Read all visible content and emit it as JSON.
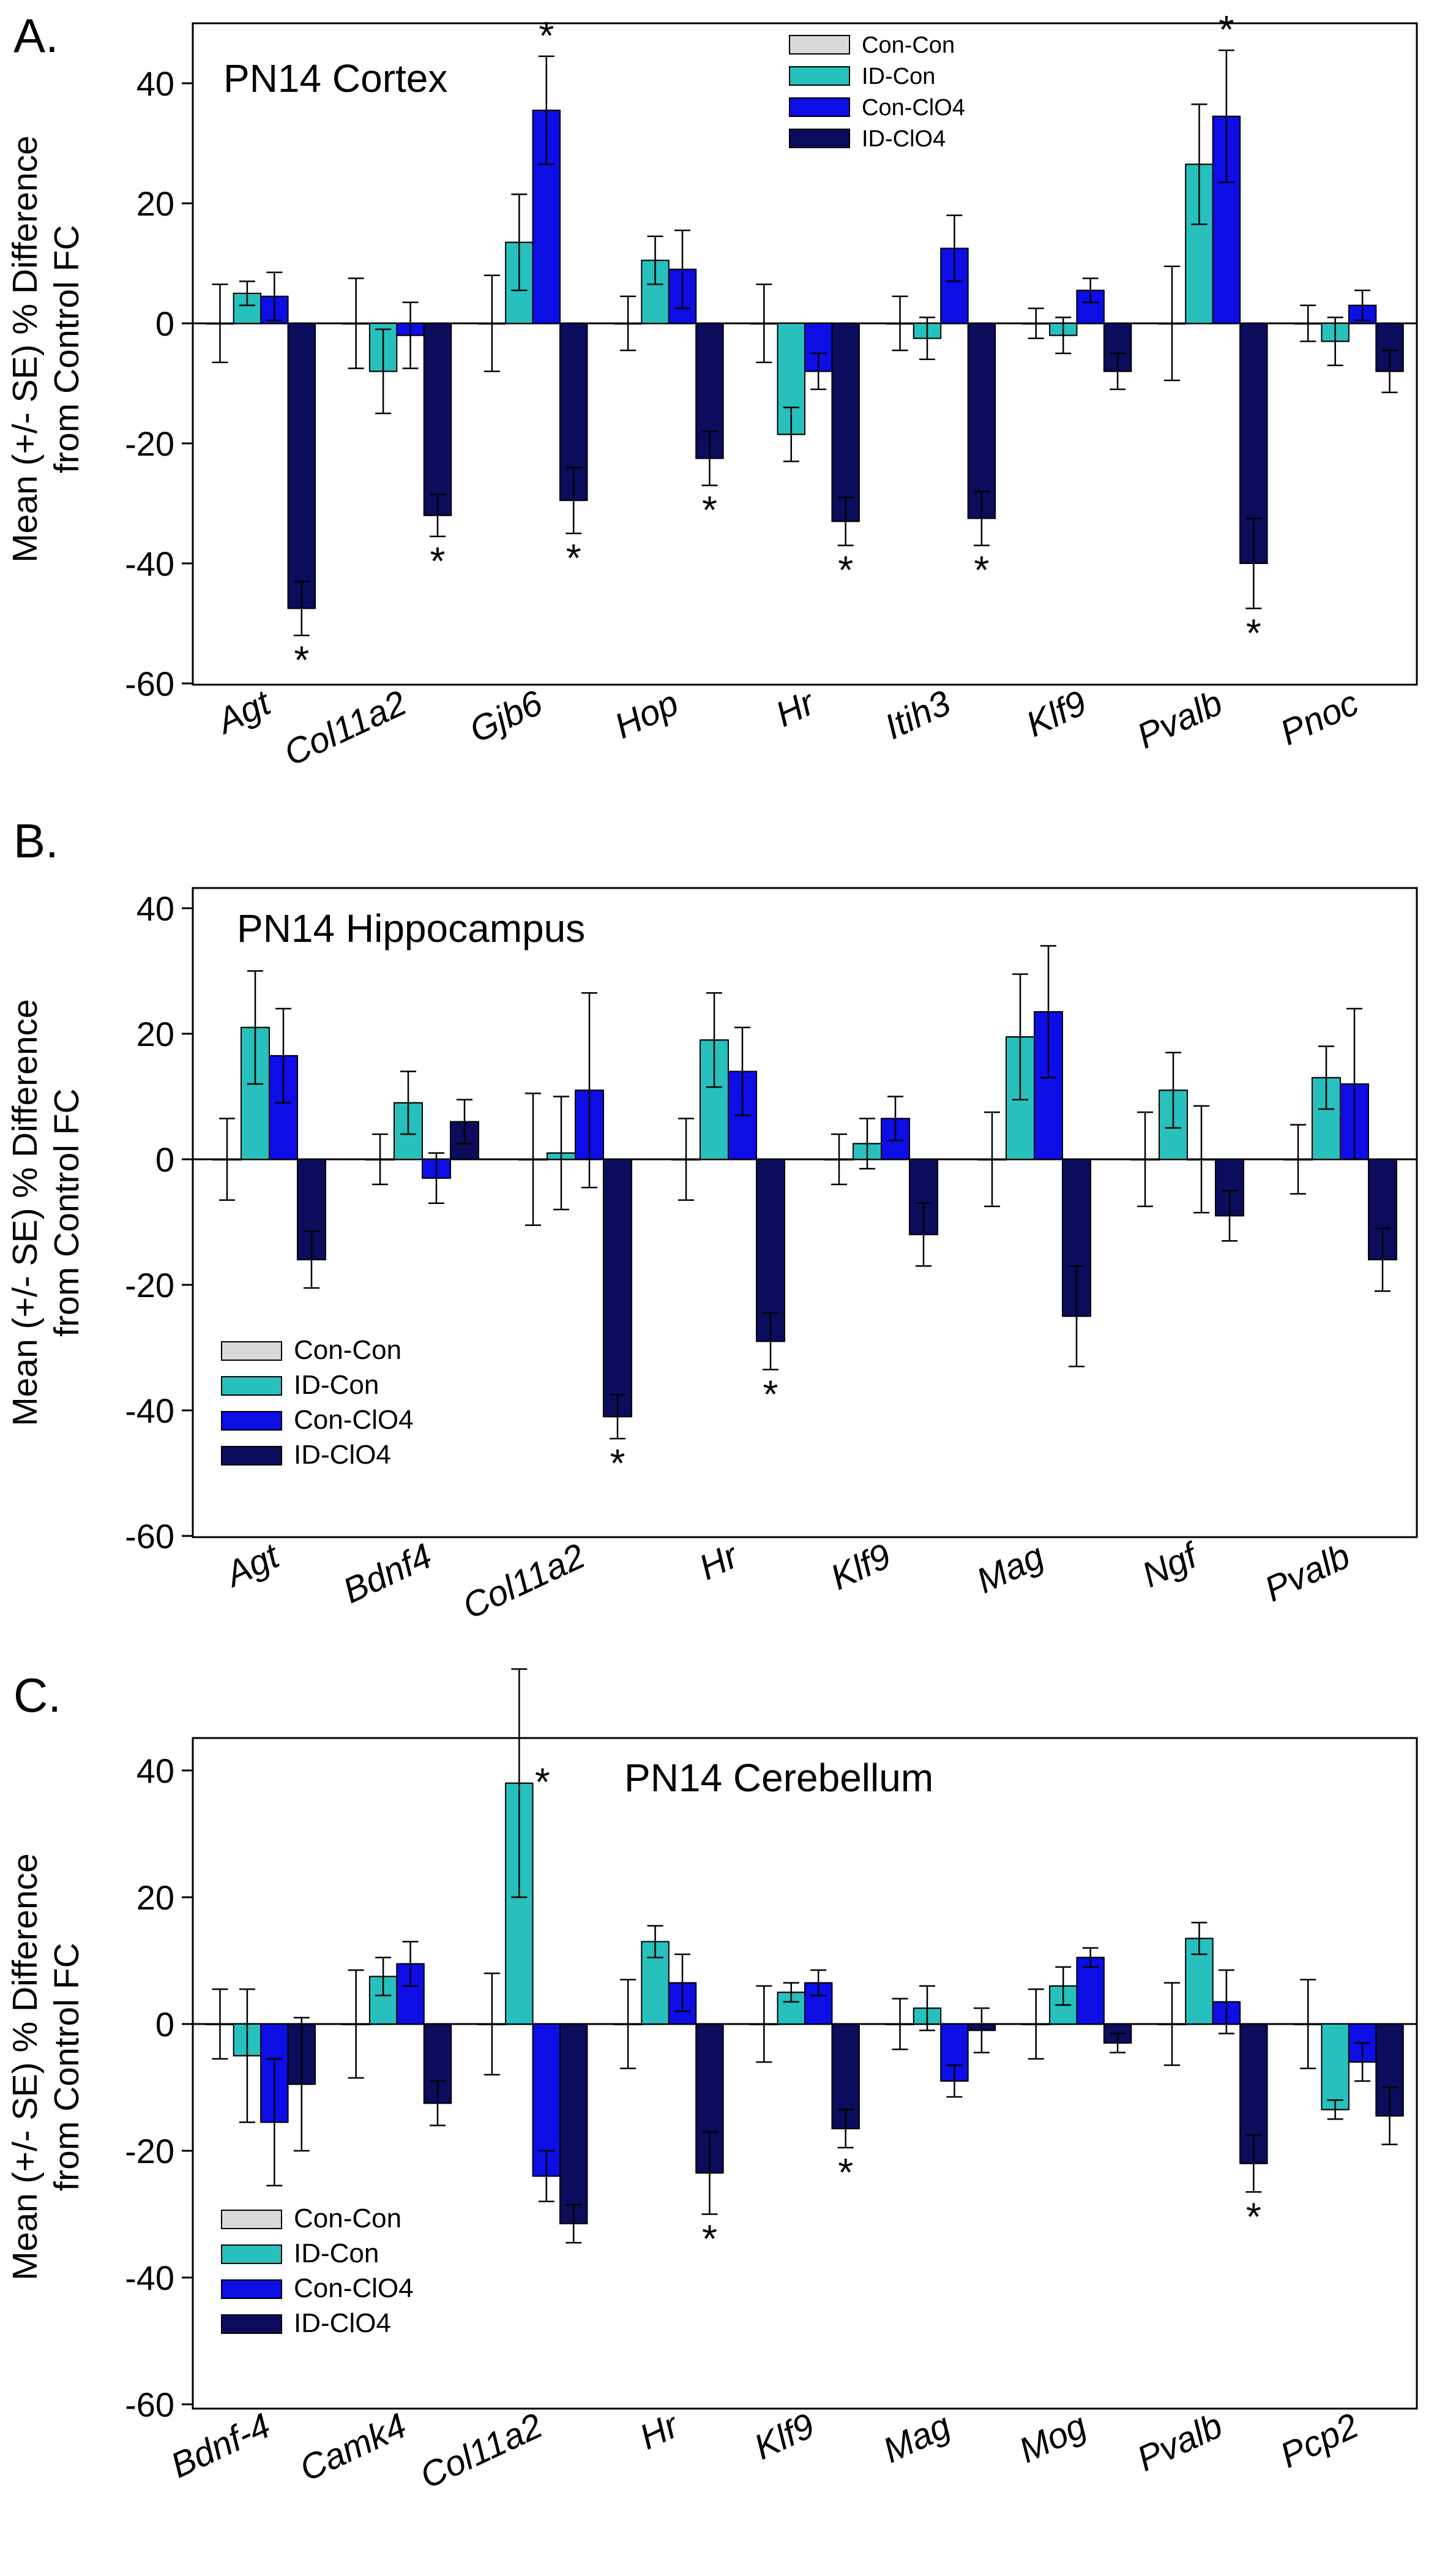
{
  "groups": [
    "Con-Con",
    "ID-Con",
    "Con-ClO4",
    "ID-ClO4"
  ],
  "colors": {
    "Con-Con": "#d9d9d9",
    "ID-Con": "#27c0bd",
    "Con-ClO4": "#0d0de6",
    "ID-ClO4": "#0c0c5c",
    "axis": "#000000"
  },
  "significance_marker": "*",
  "chart_data": [
    {
      "type": "bar",
      "panel_label": "A.",
      "title": "PN14 Cortex",
      "legend_position": "top-center",
      "ylabel": "Mean (+/- SE) % Difference from Control FC",
      "ylabel_lines": [
        "Mean (+/- SE) % Difference",
        "from Control FC"
      ],
      "ylim": [
        -60,
        45
      ],
      "yticks": [
        40,
        20,
        0,
        -20,
        -40,
        -60
      ],
      "ytick_labels": [
        "40",
        "20",
        "0",
        "-20",
        "-40",
        "-60"
      ],
      "categories": [
        "Agt",
        "Col11a2",
        "Gjb6",
        "Hop",
        "Hr",
        "Itih3",
        "Klf9",
        "Pvalb",
        "Pnoc"
      ],
      "series": [
        {
          "name": "Con-Con",
          "values": [
            0,
            0,
            0,
            0,
            0,
            0,
            0,
            0,
            0
          ],
          "errors": [
            6.5,
            7.5,
            8,
            4.5,
            6.5,
            4.5,
            2.5,
            9.5,
            3
          ]
        },
        {
          "name": "ID-Con",
          "values": [
            5,
            -8,
            13.5,
            10.5,
            -18.5,
            -2.5,
            -2,
            26.5,
            -3
          ],
          "errors": [
            2,
            7,
            8,
            4,
            4.5,
            3.5,
            3,
            10,
            4
          ]
        },
        {
          "name": "Con-ClO4",
          "values": [
            4.5,
            -2,
            35.5,
            9,
            -8,
            12.5,
            5.5,
            34.5,
            3
          ],
          "errors": [
            4,
            5.5,
            9,
            6.5,
            3,
            5.5,
            2,
            11,
            2.5
          ]
        },
        {
          "name": "ID-ClO4",
          "values": [
            -47.5,
            -32,
            -29.5,
            -22.5,
            -33,
            -32.5,
            -8,
            -40,
            -8
          ],
          "errors": [
            4.5,
            3.5,
            5.5,
            4.5,
            4,
            4.5,
            3,
            7.5,
            3.5
          ]
        }
      ],
      "significance": [
        {
          "category": "Agt",
          "series": "ID-ClO4"
        },
        {
          "category": "Col11a2",
          "series": "ID-ClO4"
        },
        {
          "category": "Gjb6",
          "series": "Con-ClO4"
        },
        {
          "category": "Gjb6",
          "series": "ID-ClO4"
        },
        {
          "category": "Hop",
          "series": "ID-ClO4"
        },
        {
          "category": "Hr",
          "series": "ID-ClO4"
        },
        {
          "category": "Itih3",
          "series": "ID-ClO4"
        },
        {
          "category": "Pvalb",
          "series": "Con-ClO4"
        },
        {
          "category": "Pvalb",
          "series": "ID-ClO4"
        }
      ]
    },
    {
      "type": "bar",
      "panel_label": "B.",
      "title": "PN14 Hippocampus",
      "legend_position": "bottom-left",
      "ylabel": "Mean (+/- SE) % Difference from Control FC",
      "ylabel_lines": [
        "Mean (+/- SE) % Difference",
        "from Control FC"
      ],
      "ylim": [
        -60,
        45
      ],
      "yticks": [
        40,
        20,
        0,
        -20,
        -40,
        -60
      ],
      "ytick_labels": [
        "40",
        "20",
        "0",
        "-20",
        "-40",
        "-60"
      ],
      "categories": [
        "Agt",
        "Bdnf4",
        "Col11a2",
        "Hr",
        "Klf9",
        "Mag",
        "Ngf",
        "Pvalb"
      ],
      "series": [
        {
          "name": "Con-Con",
          "values": [
            0,
            0,
            0,
            0,
            0,
            0,
            0,
            0
          ],
          "errors": [
            6.5,
            4,
            10.5,
            6.5,
            4,
            7.5,
            7.5,
            5.5
          ]
        },
        {
          "name": "ID-Con",
          "values": [
            21,
            9,
            1,
            19,
            2.5,
            19.5,
            11,
            13
          ],
          "errors": [
            9,
            5,
            9,
            7.5,
            4,
            10,
            6,
            5
          ]
        },
        {
          "name": "Con-ClO4",
          "values": [
            16.5,
            -3,
            11,
            14,
            6.5,
            23.5,
            0,
            12
          ],
          "errors": [
            7.5,
            4,
            15.5,
            7,
            3.5,
            10.5,
            8.5,
            12
          ]
        },
        {
          "name": "ID-ClO4",
          "values": [
            -16,
            6,
            -41,
            -29,
            -12,
            -25,
            -9,
            -16
          ],
          "errors": [
            4.5,
            3.5,
            3.5,
            4.5,
            5,
            8,
            4,
            5
          ]
        }
      ],
      "significance": [
        {
          "category": "Col11a2",
          "series": "ID-ClO4"
        },
        {
          "category": "Hr",
          "series": "ID-ClO4"
        }
      ]
    },
    {
      "type": "bar",
      "panel_label": "C.",
      "title": "PN14 Cerebellum",
      "legend_position": "bottom-left",
      "ylabel": "Mean (+/- SE) % Difference from Control FC",
      "ylabel_lines": [
        "Mean (+/- SE) % Difference",
        "from Control FC"
      ],
      "ylim": [
        -60,
        45
      ],
      "yticks": [
        40,
        20,
        0,
        -20,
        -40,
        -60
      ],
      "ytick_labels": [
        "40",
        "20",
        "0",
        "-20",
        "-40",
        "-60"
      ],
      "categories": [
        "Bdnf-4",
        "Camk4",
        "Col11a2",
        "Hr",
        "Klf9",
        "Mag",
        "Mog",
        "Pvalb",
        "Pcp2"
      ],
      "series": [
        {
          "name": "Con-Con",
          "values": [
            0,
            0,
            0,
            0,
            0,
            0,
            0,
            0,
            0
          ],
          "errors": [
            5.5,
            8.5,
            8,
            7,
            6,
            4,
            5.5,
            6.5,
            7
          ]
        },
        {
          "name": "ID-Con",
          "values": [
            -5,
            7.5,
            38,
            13,
            5,
            2.5,
            6,
            13.5,
            -13.5
          ],
          "errors": [
            10.5,
            3,
            18,
            2.5,
            1.5,
            3.5,
            3,
            2.5,
            1.5
          ]
        },
        {
          "name": "Con-ClO4",
          "values": [
            -15.5,
            9.5,
            -24,
            6.5,
            6.5,
            -9,
            10.5,
            3.5,
            -6
          ],
          "errors": [
            10,
            3.5,
            4,
            4.5,
            2,
            2.5,
            1.5,
            5,
            3
          ]
        },
        {
          "name": "ID-ClO4",
          "values": [
            -9.5,
            -12.5,
            -31.5,
            -23.5,
            -16.5,
            -1,
            -3,
            -22,
            -14.5
          ],
          "errors": [
            10.5,
            3.5,
            3,
            6.5,
            3,
            3.5,
            1.5,
            4.5,
            4.5
          ]
        }
      ],
      "significance": [
        {
          "category": "Col11a2",
          "series": "ID-Con"
        },
        {
          "category": "Hr",
          "series": "ID-ClO4"
        },
        {
          "category": "Klf9",
          "series": "ID-ClO4"
        },
        {
          "category": "Pvalb",
          "series": "ID-ClO4"
        }
      ]
    }
  ]
}
